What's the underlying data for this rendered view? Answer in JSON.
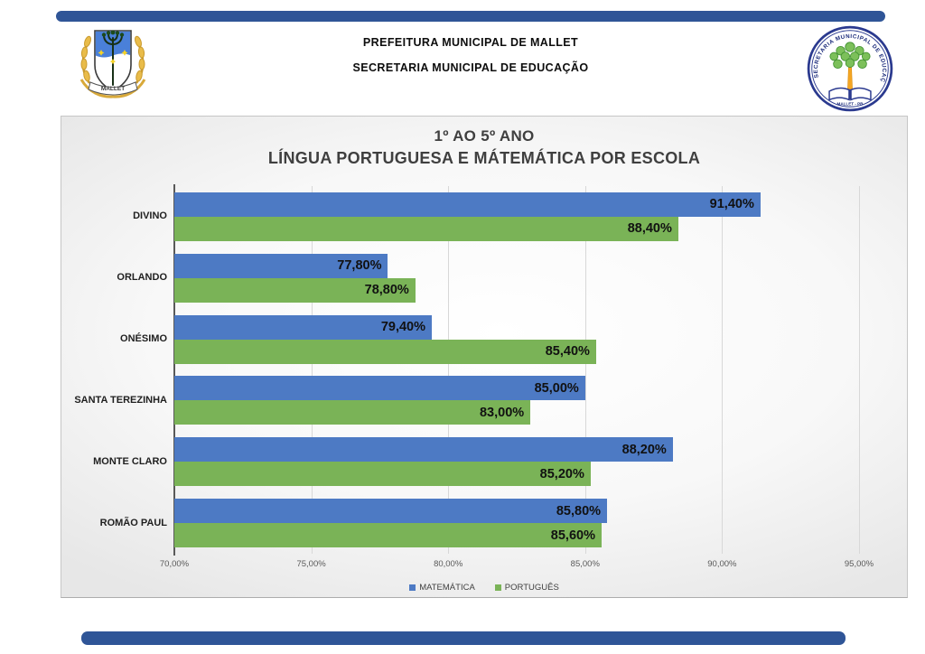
{
  "page": {
    "accent_bar_color": "#2F5597",
    "background": "#ffffff"
  },
  "header": {
    "line1": "PREFEITURA MUNICIPAL DE MALLET",
    "line2": "SECRETARIA MUNICIPAL DE EDUCAÇÃO",
    "left_logo": {
      "name": "mallet-coat-of-arms",
      "banner_text": "MALLET"
    },
    "right_logo": {
      "name": "secretaria-municipal-de-educacao-seal",
      "ring_text": "SECRETARIA MUNICIPAL DE EDUCAÇÃO",
      "caption": "MALLET - PR"
    }
  },
  "chart_data": {
    "type": "bar",
    "orientation": "horizontal",
    "title_lines": [
      "1º AO 5º ANO",
      "LÍNGUA PORTUGUESA E MÁTEMÁTICA POR ESCOLA"
    ],
    "categories": [
      "DIVINO",
      "ORLANDO",
      "ONÉSIMO",
      "SANTA TEREZINHA",
      "MONTE CLARO",
      "ROMÃO PAUL"
    ],
    "series": [
      {
        "name": "MATEMÁTICA",
        "color": "#4d7ac4",
        "values": [
          91.4,
          77.8,
          79.4,
          85.0,
          88.2,
          85.8
        ],
        "labels": [
          "91,40%",
          "77,80%",
          "79,40%",
          "85,00%",
          "88,20%",
          "85,80%"
        ]
      },
      {
        "name": "PORTUGUÊS",
        "color": "#7ab357",
        "values": [
          88.4,
          78.8,
          85.4,
          83.0,
          85.2,
          85.6
        ],
        "labels": [
          "88,40%",
          "78,80%",
          "85,40%",
          "83,00%",
          "85,20%",
          "85,60%"
        ]
      }
    ],
    "x_axis": {
      "min": 70,
      "max": 95,
      "tick_values": [
        70,
        75,
        80,
        85,
        90,
        95
      ],
      "tick_labels": [
        "70,00%",
        "75,00%",
        "80,00%",
        "85,00%",
        "90,00%",
        "95,00%"
      ]
    },
    "legend_position": "bottom",
    "grid": true,
    "colors": {
      "axis_line": "#595959",
      "gridline": "#d8d8d8",
      "value_label": "#111111",
      "tick_label": "#595959"
    }
  }
}
